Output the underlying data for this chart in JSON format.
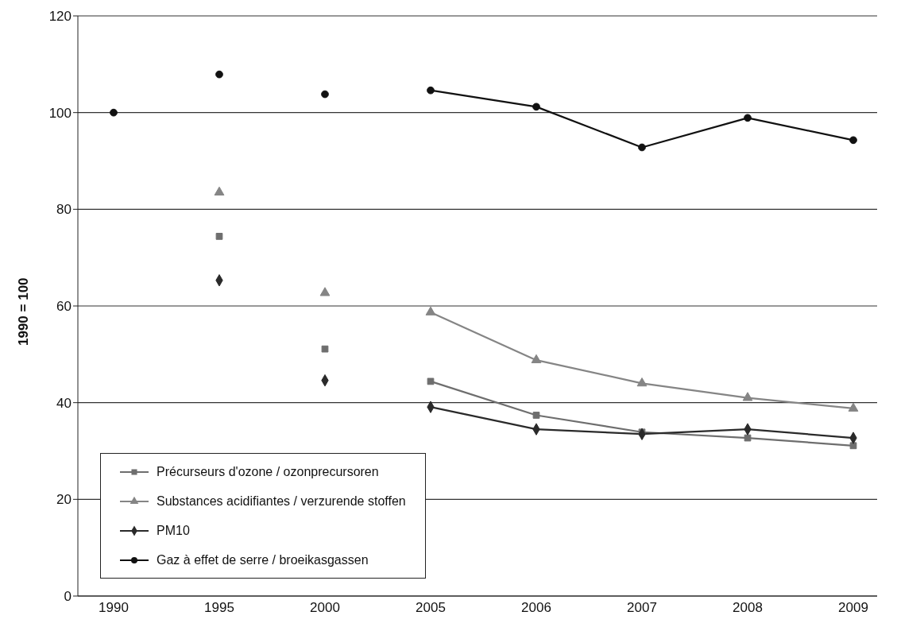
{
  "chart_data": {
    "type": "line",
    "ylabel": "1990 = 100",
    "categories": [
      "1990",
      "1995",
      "2000",
      "2005",
      "2006",
      "2007",
      "2008",
      "2009"
    ],
    "series": [
      {
        "name": "Précurseurs d'ozone / ozonprecursoren",
        "color": "#6e6e6e",
        "marker": "square",
        "values": [
          null,
          null,
          null,
          44.4,
          37.4,
          33.9,
          32.7,
          31.1
        ]
      },
      {
        "name": "Substances acidifiantes / verzurende stoffen",
        "color": "#858585",
        "marker": "triangle",
        "values": [
          null,
          null,
          null,
          58.7,
          48.8,
          44,
          41,
          38.8
        ]
      },
      {
        "name": "PM10",
        "color": "#2a2a2a",
        "marker": "diamond",
        "values": [
          null,
          null,
          null,
          39.1,
          34.5,
          33.5,
          34.5,
          32.7
        ]
      },
      {
        "name": "Gaz à effet de serre / broeikasgassen",
        "color": "#111111",
        "marker": "circle",
        "values": [
          null,
          null,
          null,
          104.6,
          101.2,
          92.8,
          98.9,
          94.3
        ]
      },
      {
        "type": "scatter",
        "color": "#6e6e6e",
        "marker": "square",
        "values": [
          null,
          74.4,
          51.1,
          null,
          null,
          null,
          null,
          null
        ]
      },
      {
        "type": "scatter",
        "color": "#858585",
        "marker": "triangle",
        "values": [
          null,
          83.5,
          62.7,
          null,
          null,
          null,
          null,
          null
        ]
      },
      {
        "type": "scatter",
        "color": "#2a2a2a",
        "marker": "diamond",
        "values": [
          null,
          65.3,
          44.6,
          null,
          null,
          null,
          null,
          null
        ]
      },
      {
        "type": "scatter",
        "color": "#111111",
        "marker": "circle",
        "values": [
          100,
          107.9,
          103.8,
          null,
          null,
          null,
          null,
          null
        ]
      }
    ],
    "ylim": [
      0,
      120
    ],
    "yticks": [
      0,
      20,
      40,
      60,
      80,
      100,
      120
    ],
    "grid": "y",
    "legend": "bottom left",
    "line_style": "solid"
  }
}
